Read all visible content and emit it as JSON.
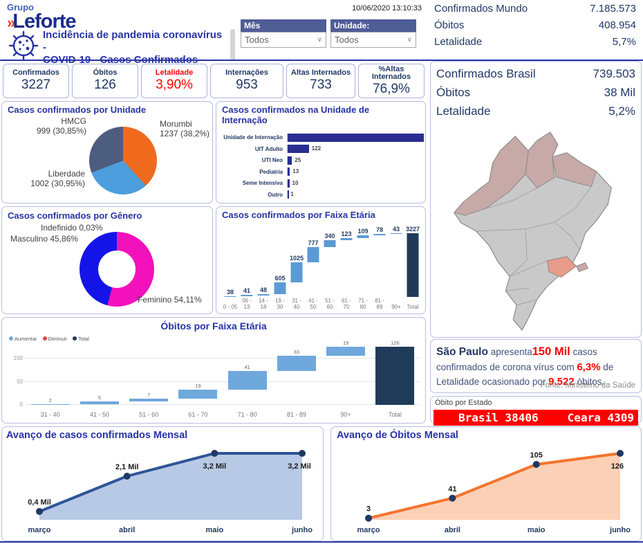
{
  "header": {
    "logo_top": "Grupo",
    "logo_mark": "»",
    "logo_name": "Leforte",
    "title_line1": "Incidência de pandemia coronavírus -",
    "title_line2": "COVID-19 - Casos Confirmados",
    "datetime": "10/06/2020 13:10:33",
    "filters": [
      {
        "label": "Mês",
        "value": "Todos"
      },
      {
        "label": "Unidade:",
        "value": "Todos"
      }
    ],
    "world_stats": [
      {
        "label": "Confirmados Mundo",
        "value": "7.185.573"
      },
      {
        "label": "Óbitos",
        "value": "408.954"
      },
      {
        "label": "Letalidade",
        "value": "5,7%"
      }
    ]
  },
  "kpis": [
    {
      "label": "Confirmados",
      "value": "3227",
      "color": "#203864"
    },
    {
      "label": "Óbitos",
      "value": "126",
      "color": "#203864"
    },
    {
      "label": "Letalidade",
      "value": "3,90%",
      "color": "#FF0000"
    },
    {
      "label": "Internações",
      "value": "953",
      "color": "#203864"
    },
    {
      "label": "Altas Internados",
      "value": "733",
      "color": "#203864"
    },
    {
      "label": "%Altas Internados",
      "value": "76,9%",
      "color": "#203864"
    }
  ],
  "brasil": {
    "stats": [
      {
        "label": "Confirmados Brasil",
        "value": "739.503"
      },
      {
        "label": "Óbitos",
        "value": "38 Mil"
      },
      {
        "label": "Letalidade",
        "value": "5,2%"
      }
    ],
    "map": {
      "base_color": "#C9C9C9",
      "shaded_color": "#C7A9A7",
      "highlight_color": "#E99B8A",
      "highlighted_region": "São Paulo"
    },
    "story": {
      "s1": "São Paulo",
      "s2": " apresenta",
      "s3": "150 Mil",
      "s4": " casos confirmados de corona vírus com ",
      "s5": "6,3%",
      "s6": " de Letalidade ocasionado por ",
      "s7": "9.522",
      "s8": " óbitos.",
      "fonte": "Fonte: Ministério da Saúde"
    },
    "ticker": {
      "title": "Óbito por Estado",
      "items": [
        "Brasil 38406",
        "Ceara 4309"
      ],
      "bg": "#FE0000"
    }
  },
  "chart_data": [
    {
      "id": "unidade",
      "type": "pie",
      "title": "Casos confirmados por Unidade",
      "slices": [
        {
          "label": "Morumbi",
          "value": 1237,
          "pct": "38,2%",
          "color": "#F06A1D"
        },
        {
          "label": "Liberdade",
          "value": 1002,
          "pct": "30,95%",
          "color": "#4C9FDC"
        },
        {
          "label": "HMCG",
          "value": 999,
          "pct": "30,85%",
          "color": "#4D5D7F"
        }
      ]
    },
    {
      "id": "internacao",
      "type": "bar",
      "orientation": "horizontal",
      "title": "Casos confirmados na Unidade de Internação",
      "categories": [
        "Unidade de Internação",
        "UIT Adulto",
        "UTI Neo",
        "Pediatria",
        "Seme Intensiva",
        "Outro"
      ],
      "values": [
        782,
        122,
        25,
        13,
        10,
        1
      ],
      "bar_color": "#2A2E91",
      "xlim": [
        0,
        782
      ]
    },
    {
      "id": "genero",
      "type": "pie",
      "subtype": "donut",
      "title": "Casos confirmados por Gênero",
      "slices": [
        {
          "label": "Feminino",
          "pct_value": 54.11,
          "pct": "54,11%",
          "color": "#F311BC"
        },
        {
          "label": "Masculino",
          "pct_value": 45.86,
          "pct": "45,86%",
          "color": "#1414E8"
        },
        {
          "label": "Indefinido",
          "pct_value": 0.03,
          "pct": "0,03%",
          "color": "#A6A6A6"
        }
      ]
    },
    {
      "id": "casos_faixa",
      "type": "waterfall",
      "title": "Casos confirmados por Faixa Etária",
      "categories": [
        "0 - 05",
        "06 - 13",
        "14 - 18",
        "19 - 30",
        "31 - 40",
        "41 - 50",
        "51 - 60",
        "61 - 70",
        "71 - 80",
        "81 - 89",
        "90+",
        "Total"
      ],
      "values": [
        38,
        41,
        48,
        605,
        1025,
        777,
        340,
        123,
        109,
        78,
        43
      ],
      "total": 3227,
      "increase_color": "#5B9BD5",
      "total_color": "#1F3B59"
    },
    {
      "id": "obitos_faixa",
      "type": "waterfall",
      "title": "Óbitos por Faixa Etária",
      "categories": [
        "31 - 40",
        "41 - 50",
        "51 - 60",
        "61 - 70",
        "71 - 80",
        "81 - 89",
        "90+",
        "Total"
      ],
      "values": [
        2,
        5,
        7,
        19,
        41,
        33,
        19
      ],
      "total": 126,
      "legend": [
        "Aumentar",
        "Diminuir",
        "Total"
      ],
      "legend_colors": [
        "#74A9DB",
        "#E04444",
        "#1F3B59"
      ],
      "y_ticks": [
        0,
        50,
        100
      ],
      "increase_color": "#6FA8DC",
      "total_color": "#1F3B59"
    },
    {
      "id": "casos_mensal",
      "type": "area",
      "title": "Avanço de casos confirmados Mensal",
      "x": [
        "março",
        "abril",
        "maio",
        "junho"
      ],
      "values": [
        0.4,
        2.1,
        3.2,
        3.2
      ],
      "labels": [
        "0,4 Mil",
        "2,1 Mil",
        "3,2 Mil",
        "3,2 Mil"
      ],
      "line_color": "#2F5597",
      "fill_color": "#B7C9E5",
      "dot_color": "#1F3864"
    },
    {
      "id": "obitos_mensal",
      "type": "area",
      "title": "Avanço de Óbitos Mensal",
      "x": [
        "março",
        "abril",
        "maio",
        "junho"
      ],
      "values": [
        3,
        41,
        105,
        126
      ],
      "labels": [
        "3",
        "41",
        "105",
        "126"
      ],
      "line_color": "#F4742F",
      "fill_color": "#FCD0B6",
      "dot_color": "#1F3864"
    }
  ]
}
